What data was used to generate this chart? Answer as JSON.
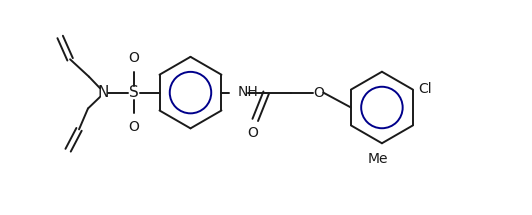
{
  "bg_color": "#ffffff",
  "line_color": "#1a1a1a",
  "line_color_blue": "#00008B",
  "bond_lw": 1.4,
  "figsize": [
    5.32,
    2.15
  ],
  "dpi": 100,
  "xlim": [
    0,
    10.64
  ],
  "ylim": [
    0,
    4.3
  ]
}
